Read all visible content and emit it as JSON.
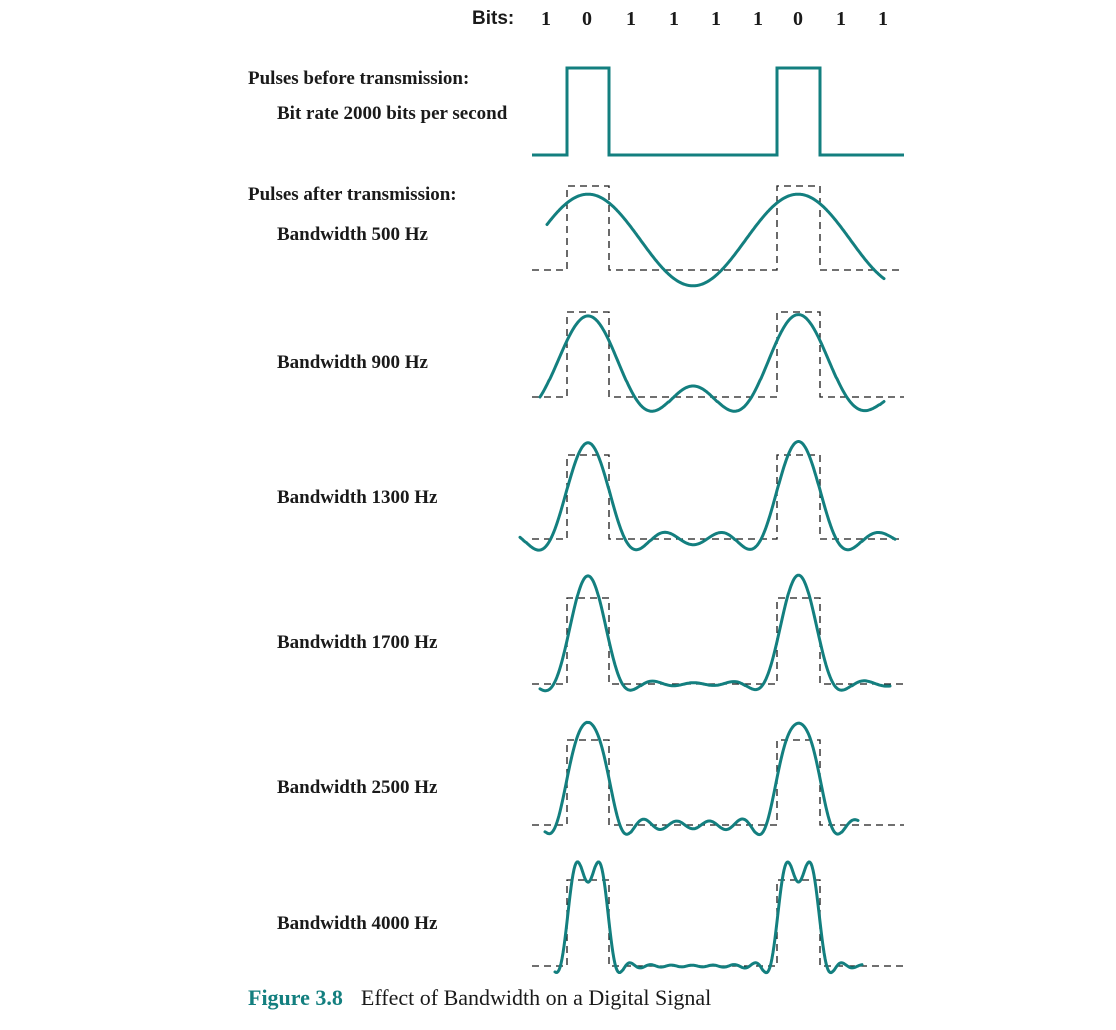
{
  "bits_label": "Bits:",
  "bits": [
    "1",
    "0",
    "1",
    "1",
    "1",
    "1",
    "0",
    "1",
    "1"
  ],
  "before": {
    "heading": "Pulses before transmission:",
    "rate_label": "Bit rate 2000 bits per second"
  },
  "after": {
    "heading": "Pulses after transmission:"
  },
  "panels": [
    {
      "label": "Bandwidth 500 Hz",
      "bandwidth_hz": 500
    },
    {
      "label": "Bandwidth 900 Hz",
      "bandwidth_hz": 900
    },
    {
      "label": "Bandwidth 1300 Hz",
      "bandwidth_hz": 1300
    },
    {
      "label": "Bandwidth 1700 Hz",
      "bandwidth_hz": 1700
    },
    {
      "label": "Bandwidth 2500 Hz",
      "bandwidth_hz": 2500
    },
    {
      "label": "Bandwidth 4000 Hz",
      "bandwidth_hz": 4000
    }
  ],
  "caption": {
    "number": "Figure 3.8",
    "title": "Effect of Bandwidth on a Digital Signal"
  },
  "colors": {
    "signal": "#137f7f",
    "dashed": "#1a1a1a",
    "caption_accent": "#137f7f"
  }
}
